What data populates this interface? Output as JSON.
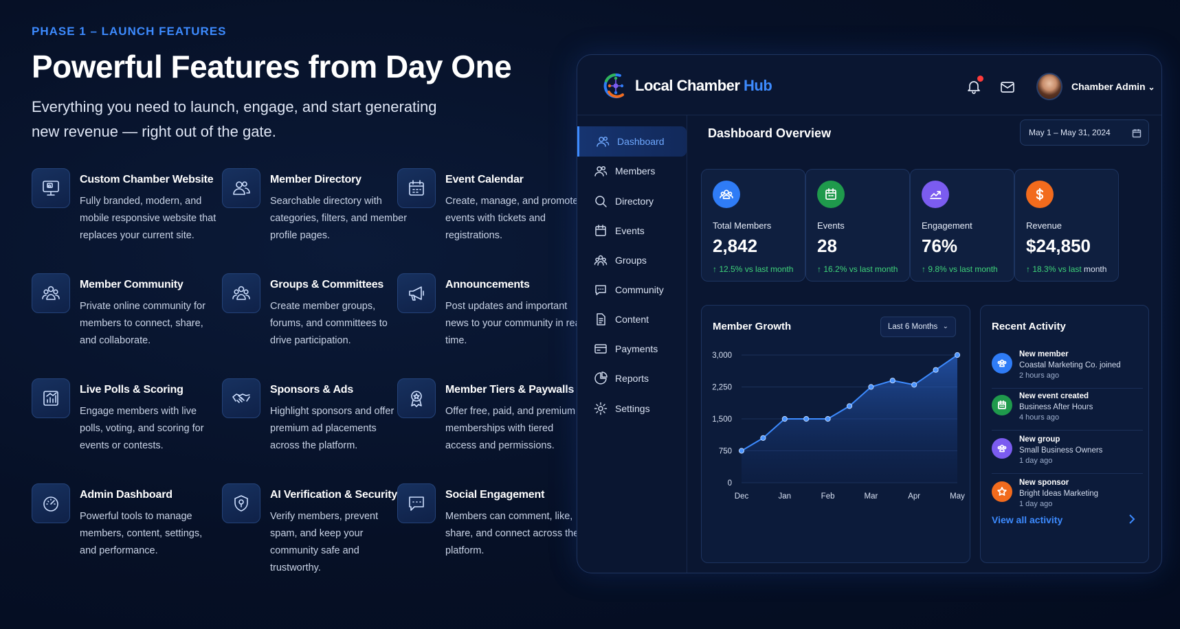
{
  "intro": {
    "eyebrow": "PHASE 1 – LAUNCH FEATURES",
    "headline": "Powerful Features from Day One",
    "subhead": "Everything you need to launch, engage, and start generating new revenue — right out of the gate."
  },
  "features": [
    {
      "title": "Custom Chamber Website",
      "desc": "Fully branded, modern, and mobile responsive website that replaces your current site.",
      "icon": "monitor-icon"
    },
    {
      "title": "Member Directory",
      "desc": "Searchable directory with categories, filters, and member profile pages.",
      "icon": "users-icon"
    },
    {
      "title": "Event Calendar",
      "desc": "Create, manage, and promote events with tickets and registrations.",
      "icon": "calendar-icon"
    },
    {
      "title": "Member Community",
      "desc": "Private online community for members to connect, share, and collaborate.",
      "icon": "community-icon"
    },
    {
      "title": "Groups & Committees",
      "desc": "Create member groups, forums, and committees to drive participation.",
      "icon": "groups-icon"
    },
    {
      "title": "Announcements",
      "desc": "Post updates and important news to your community in real time.",
      "icon": "megaphone-icon"
    },
    {
      "title": "Live Polls & Scoring",
      "desc": "Engage members with live polls, voting, and scoring for events or contests.",
      "icon": "bar-chart-icon"
    },
    {
      "title": "Sponsors & Ads",
      "desc": "Highlight sponsors and offer premium ad placements across the platform.",
      "icon": "handshake-icon"
    },
    {
      "title": "Member Tiers & Paywalls",
      "desc": "Offer free, paid, and premium memberships with tiered access and permissions.",
      "icon": "badge-icon"
    },
    {
      "title": "Admin Dashboard",
      "desc": "Powerful tools to manage members, content, settings, and performance.",
      "icon": "gauge-icon"
    },
    {
      "title": "AI Verification & Security",
      "desc": "Verify members, prevent spam, and keep your community safe and trustworthy.",
      "icon": "shield-icon"
    },
    {
      "title": "Social Engagement",
      "desc": "Members can comment, like, share, and connect across the platform.",
      "icon": "chat-icon"
    }
  ],
  "app": {
    "logo_main": "Local Chamber ",
    "logo_accent": "Hub",
    "user_name": "Chamber Admin",
    "user_chevron": "⌄"
  },
  "sidebar": {
    "items": [
      {
        "label": "Dashboard",
        "icon": "dashboard-icon"
      },
      {
        "label": "Members",
        "icon": "members-icon"
      },
      {
        "label": "Directory",
        "icon": "search-icon"
      },
      {
        "label": "Events",
        "icon": "calendar-icon"
      },
      {
        "label": "Groups",
        "icon": "groups-icon"
      },
      {
        "label": "Community",
        "icon": "chat-icon"
      },
      {
        "label": "Content",
        "icon": "document-icon"
      },
      {
        "label": "Payments",
        "icon": "card-icon"
      },
      {
        "label": "Reports",
        "icon": "pie-icon"
      },
      {
        "label": "Settings",
        "icon": "gear-icon"
      }
    ]
  },
  "overview": {
    "title": "Dashboard Overview",
    "date_range": "May 1 – May 31, 2024"
  },
  "stats": [
    {
      "label": "Total Members",
      "value": "2,842",
      "change": "↑ 12.5% vs last month",
      "suffix": "",
      "color": "#2f7cf6"
    },
    {
      "label": "Events",
      "value": "28",
      "change": "↑ 16.2% vs last month",
      "suffix": "",
      "color": "#1f9a4c"
    },
    {
      "label": "Engagement",
      "value": "76%",
      "change": "↑ 9.8% vs last month",
      "suffix": "",
      "color": "#7b5cf0"
    },
    {
      "label": "Revenue",
      "value": "$24,850",
      "change": "↑ 18.3% vs last",
      "suffix": " month",
      "color": "#f26b1d"
    }
  ],
  "growth": {
    "title": "Member Growth",
    "period": "Last 6 Months"
  },
  "chart_data": {
    "type": "area",
    "title": "Member Growth",
    "x": [
      "Dec",
      "",
      "Jan",
      "",
      "Feb",
      "",
      "Mar",
      "",
      "Apr",
      "",
      "May"
    ],
    "categories": [
      "Dec",
      "Jan",
      "Feb",
      "Mar",
      "Apr",
      "May"
    ],
    "values": [
      750,
      1050,
      1500,
      1500,
      1500,
      1800,
      2250,
      2400,
      2300,
      2650,
      3000
    ],
    "ylim": [
      0,
      3000
    ],
    "yticks": [
      "3,000",
      "2,250",
      "1,500",
      "750",
      "0"
    ],
    "ytick_values": [
      3000,
      2250,
      1500,
      750,
      0
    ],
    "grid": true,
    "color": "#3d8bff"
  },
  "activity": {
    "title": "Recent Activity",
    "items": [
      {
        "title": "New member",
        "detail": "Coastal Marketing Co. joined",
        "time": "2 hours ago",
        "color": "#2f7cf6",
        "icon": "users-icon"
      },
      {
        "title": "New event created",
        "detail": "Business After Hours",
        "time": "4 hours ago",
        "color": "#1f9a4c",
        "icon": "calendar-icon"
      },
      {
        "title": "New group",
        "detail": "Small Business Owners",
        "time": "1 day ago",
        "color": "#7b5cf0",
        "icon": "groups-icon"
      },
      {
        "title": "New sponsor",
        "detail": "Bright Ideas Marketing",
        "time": "1 day ago",
        "color": "#f26b1d",
        "icon": "star-badge-icon"
      }
    ],
    "view_all": "View all activity"
  }
}
